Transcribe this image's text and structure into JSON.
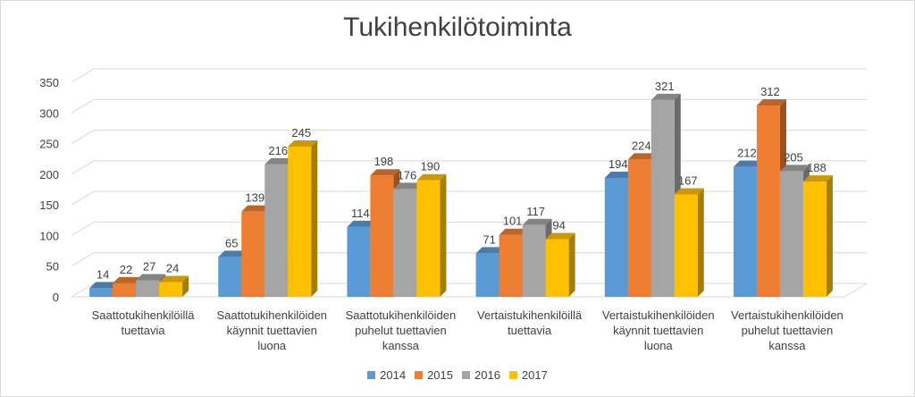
{
  "chart_data": {
    "type": "bar",
    "title": "Tukihenkilötoiminta",
    "categories": [
      [
        "Saattotukihenkilöillä",
        "tuettavia"
      ],
      [
        "Saattotukihenkilöiden",
        "käynnit tuettavien",
        "luona"
      ],
      [
        "Saattotukihenkilöiden",
        "puhelut tuettavien",
        "kanssa"
      ],
      [
        "Vertaistukihenkilöillä",
        "tuettavia"
      ],
      [
        "Vertaistukihenkilöiden",
        "käynnit tuettavien",
        "luona"
      ],
      [
        "Vertaistukihenkilöiden",
        "puhelut tuettavien",
        "kanssa"
      ]
    ],
    "series": [
      {
        "name": "2014",
        "color": "#5b9bd5",
        "values": [
          14,
          65,
          114,
          71,
          194,
          212
        ]
      },
      {
        "name": "2015",
        "color": "#ed7d31",
        "values": [
          22,
          139,
          198,
          101,
          224,
          312
        ]
      },
      {
        "name": "2016",
        "color": "#a5a5a5",
        "values": [
          27,
          216,
          176,
          117,
          321,
          205
        ]
      },
      {
        "name": "2017",
        "color": "#ffc000",
        "values": [
          24,
          245,
          190,
          94,
          167,
          188
        ]
      }
    ],
    "ylim": [
      0,
      350
    ],
    "yticks": [
      0,
      50,
      100,
      150,
      200,
      250,
      300,
      350
    ],
    "grid": true,
    "legend_position": "bottom",
    "style": "3d-clustered-column"
  }
}
